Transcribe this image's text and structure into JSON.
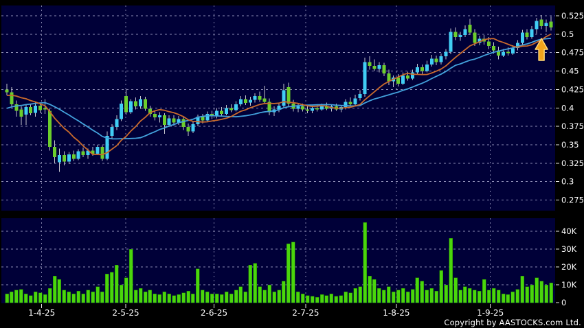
{
  "copyright": "Copyright by AASTOCKS.com Ltd.",
  "colors": {
    "background": "#000000",
    "plot_bg": "#000038",
    "grid_h": "#8C8CB4",
    "grid_v": "#8080A8",
    "up": "#41CDF4",
    "down": "#6CCE2C",
    "wick": "#C4C4CC",
    "volume_bar": "#4AD60C",
    "volume_bar_edge": "#1E7A00",
    "ma_short": "#C96A2C",
    "ma_long": "#43A2DC",
    "text": "#FFFFFF",
    "tick": "#E8E8E8",
    "arrow_fill": "#F2A41C",
    "arrow_edge": "#FFD978"
  },
  "chart_data": {
    "type": "candlestick",
    "title": "",
    "xlabel": "",
    "ylabel": "",
    "price_axis_range": [
      0.275,
      0.525
    ],
    "volume_axis_range": [
      0,
      40000
    ],
    "candles_format": [
      "open",
      "high",
      "low",
      "close",
      "volume"
    ],
    "price_axis_ticks": [
      {
        "v": 0.525,
        "label": "0.525"
      },
      {
        "v": 0.5,
        "label": "0.5"
      },
      {
        "v": 0.475,
        "label": "0.475"
      },
      {
        "v": 0.45,
        "label": "0.45"
      },
      {
        "v": 0.425,
        "label": "0.425"
      },
      {
        "v": 0.4,
        "label": "0.4"
      },
      {
        "v": 0.375,
        "label": "0.375"
      },
      {
        "v": 0.35,
        "label": "0.35"
      },
      {
        "v": 0.325,
        "label": "0.325"
      },
      {
        "v": 0.3,
        "label": "0.3"
      },
      {
        "v": 0.275,
        "label": "0.275"
      }
    ],
    "volume_axis_ticks": [
      {
        "v": 40000,
        "label": "40K"
      },
      {
        "v": 30000,
        "label": "30K"
      },
      {
        "v": 20000,
        "label": "20K"
      },
      {
        "v": 10000,
        "label": "10K"
      },
      {
        "v": 0,
        "label": "0"
      }
    ],
    "x_axis_labels": [
      {
        "label": "1-4-25",
        "index": 7.3
      },
      {
        "label": "2-5-25",
        "index": 24.9
      },
      {
        "label": "2-6-25",
        "index": 43.4
      },
      {
        "label": "2-7-25",
        "index": 62.6
      },
      {
        "label": "1-8-25",
        "index": 81.6
      },
      {
        "label": "1-9-25",
        "index": 101.3
      }
    ],
    "moving_averages": {
      "short_period": 10,
      "long_period": 20,
      "prehistory_closes": [
        0.362,
        0.366,
        0.37,
        0.374,
        0.377,
        0.38,
        0.383,
        0.386,
        0.39,
        0.394,
        0.398,
        0.403,
        0.407,
        0.411,
        0.415,
        0.418,
        0.421,
        0.423,
        0.425,
        0.426
      ]
    },
    "annotations": {
      "up_arrow_index": 112
    },
    "candles": [
      [
        0.425,
        0.433,
        0.417,
        0.421,
        5000
      ],
      [
        0.421,
        0.428,
        0.402,
        0.405,
        6000
      ],
      [
        0.405,
        0.41,
        0.388,
        0.396,
        7000
      ],
      [
        0.398,
        0.402,
        0.377,
        0.388,
        7500
      ],
      [
        0.391,
        0.404,
        0.377,
        0.401,
        5000
      ],
      [
        0.401,
        0.406,
        0.39,
        0.393,
        4000
      ],
      [
        0.393,
        0.407,
        0.388,
        0.403,
        6000
      ],
      [
        0.403,
        0.406,
        0.393,
        0.397,
        5500
      ],
      [
        0.4,
        0.412,
        0.392,
        0.398,
        4500
      ],
      [
        0.396,
        0.399,
        0.342,
        0.347,
        8000
      ],
      [
        0.347,
        0.356,
        0.325,
        0.333,
        15000
      ],
      [
        0.326,
        0.345,
        0.313,
        0.336,
        13000
      ],
      [
        0.336,
        0.341,
        0.322,
        0.327,
        7000
      ],
      [
        0.327,
        0.34,
        0.324,
        0.337,
        6000
      ],
      [
        0.337,
        0.342,
        0.328,
        0.331,
        5000
      ],
      [
        0.331,
        0.344,
        0.329,
        0.341,
        6500
      ],
      [
        0.341,
        0.346,
        0.333,
        0.336,
        5000
      ],
      [
        0.336,
        0.345,
        0.331,
        0.342,
        7000
      ],
      [
        0.342,
        0.347,
        0.335,
        0.338,
        6000
      ],
      [
        0.338,
        0.35,
        0.336,
        0.347,
        9000
      ],
      [
        0.347,
        0.349,
        0.328,
        0.331,
        6000
      ],
      [
        0.331,
        0.368,
        0.329,
        0.362,
        16000
      ],
      [
        0.362,
        0.378,
        0.358,
        0.374,
        17000
      ],
      [
        0.374,
        0.39,
        0.37,
        0.385,
        21000
      ],
      [
        0.385,
        0.41,
        0.382,
        0.406,
        10000
      ],
      [
        0.416,
        0.425,
        0.391,
        0.394,
        14000
      ],
      [
        0.394,
        0.412,
        0.392,
        0.409,
        30000
      ],
      [
        0.409,
        0.414,
        0.398,
        0.402,
        7000
      ],
      [
        0.402,
        0.416,
        0.399,
        0.412,
        8000
      ],
      [
        0.412,
        0.415,
        0.396,
        0.399,
        6000
      ],
      [
        0.399,
        0.403,
        0.388,
        0.392,
        7000
      ],
      [
        0.392,
        0.397,
        0.383,
        0.387,
        5000
      ],
      [
        0.387,
        0.394,
        0.38,
        0.39,
        4500
      ],
      [
        0.39,
        0.393,
        0.365,
        0.377,
        6000
      ],
      [
        0.377,
        0.39,
        0.374,
        0.386,
        5000
      ],
      [
        0.386,
        0.39,
        0.376,
        0.38,
        4000
      ],
      [
        0.38,
        0.389,
        0.377,
        0.385,
        4500
      ],
      [
        0.385,
        0.388,
        0.37,
        0.374,
        5500
      ],
      [
        0.374,
        0.379,
        0.362,
        0.368,
        6500
      ],
      [
        0.368,
        0.382,
        0.366,
        0.378,
        5000
      ],
      [
        0.378,
        0.391,
        0.375,
        0.388,
        19000
      ],
      [
        0.388,
        0.392,
        0.379,
        0.383,
        7000
      ],
      [
        0.383,
        0.395,
        0.381,
        0.392,
        6000
      ],
      [
        0.392,
        0.396,
        0.385,
        0.389,
        5000
      ],
      [
        0.389,
        0.4,
        0.386,
        0.396,
        5000
      ],
      [
        0.396,
        0.401,
        0.389,
        0.392,
        4500
      ],
      [
        0.392,
        0.404,
        0.39,
        0.4,
        6000
      ],
      [
        0.4,
        0.405,
        0.394,
        0.397,
        5000
      ],
      [
        0.397,
        0.409,
        0.395,
        0.405,
        7000
      ],
      [
        0.405,
        0.416,
        0.402,
        0.412,
        9000
      ],
      [
        0.412,
        0.417,
        0.404,
        0.407,
        6000
      ],
      [
        0.407,
        0.415,
        0.403,
        0.411,
        21000
      ],
      [
        0.411,
        0.42,
        0.407,
        0.416,
        22000
      ],
      [
        0.416,
        0.422,
        0.408,
        0.411,
        9000
      ],
      [
        0.413,
        0.43,
        0.406,
        0.408,
        7000
      ],
      [
        0.408,
        0.413,
        0.39,
        0.394,
        10000
      ],
      [
        0.394,
        0.402,
        0.389,
        0.398,
        6000
      ],
      [
        0.398,
        0.407,
        0.394,
        0.403,
        7000
      ],
      [
        0.403,
        0.433,
        0.4,
        0.424,
        12000
      ],
      [
        0.428,
        0.434,
        0.402,
        0.406,
        33000
      ],
      [
        0.406,
        0.411,
        0.395,
        0.399,
        34000
      ],
      [
        0.399,
        0.406,
        0.394,
        0.402,
        6000
      ],
      [
        0.402,
        0.406,
        0.395,
        0.398,
        5000
      ],
      [
        0.398,
        0.404,
        0.393,
        0.396,
        4000
      ],
      [
        0.396,
        0.403,
        0.393,
        0.4,
        3500
      ],
      [
        0.4,
        0.404,
        0.395,
        0.398,
        3000
      ],
      [
        0.398,
        0.406,
        0.396,
        0.403,
        4500
      ],
      [
        0.403,
        0.407,
        0.397,
        0.399,
        4000
      ],
      [
        0.399,
        0.405,
        0.395,
        0.402,
        5000
      ],
      [
        0.402,
        0.406,
        0.396,
        0.398,
        3500
      ],
      [
        0.398,
        0.404,
        0.394,
        0.401,
        4000
      ],
      [
        0.401,
        0.412,
        0.398,
        0.408,
        6000
      ],
      [
        0.408,
        0.414,
        0.402,
        0.405,
        5500
      ],
      [
        0.405,
        0.418,
        0.403,
        0.413,
        8000
      ],
      [
        0.413,
        0.424,
        0.41,
        0.419,
        9000
      ],
      [
        0.419,
        0.468,
        0.415,
        0.462,
        45000
      ],
      [
        0.462,
        0.47,
        0.452,
        0.457,
        15000
      ],
      [
        0.457,
        0.466,
        0.45,
        0.453,
        13000
      ],
      [
        0.453,
        0.462,
        0.448,
        0.458,
        8000
      ],
      [
        0.458,
        0.461,
        0.443,
        0.447,
        7000
      ],
      [
        0.447,
        0.452,
        0.431,
        0.436,
        9000
      ],
      [
        0.436,
        0.444,
        0.428,
        0.441,
        6000
      ],
      [
        0.441,
        0.446,
        0.429,
        0.433,
        7000
      ],
      [
        0.433,
        0.448,
        0.431,
        0.444,
        8000
      ],
      [
        0.444,
        0.449,
        0.437,
        0.44,
        6000
      ],
      [
        0.44,
        0.452,
        0.438,
        0.448,
        7500
      ],
      [
        0.448,
        0.46,
        0.445,
        0.455,
        14000
      ],
      [
        0.455,
        0.459,
        0.446,
        0.45,
        12000
      ],
      [
        0.45,
        0.464,
        0.448,
        0.459,
        7000
      ],
      [
        0.459,
        0.472,
        0.456,
        0.467,
        8000
      ],
      [
        0.467,
        0.471,
        0.458,
        0.462,
        6500
      ],
      [
        0.462,
        0.474,
        0.459,
        0.47,
        18000
      ],
      [
        0.47,
        0.48,
        0.466,
        0.476,
        10000
      ],
      [
        0.476,
        0.508,
        0.473,
        0.503,
        36000
      ],
      [
        0.503,
        0.509,
        0.492,
        0.496,
        14000
      ],
      [
        0.496,
        0.503,
        0.491,
        0.499,
        7000
      ],
      [
        0.499,
        0.512,
        0.496,
        0.507,
        9000
      ],
      [
        0.513,
        0.521,
        0.499,
        0.502,
        8000
      ],
      [
        0.502,
        0.507,
        0.484,
        0.488,
        7000
      ],
      [
        0.488,
        0.498,
        0.485,
        0.494,
        6500
      ],
      [
        0.494,
        0.499,
        0.486,
        0.49,
        13000
      ],
      [
        0.49,
        0.496,
        0.48,
        0.484,
        7000
      ],
      [
        0.484,
        0.489,
        0.474,
        0.478,
        8000
      ],
      [
        0.478,
        0.483,
        0.466,
        0.471,
        7000
      ],
      [
        0.471,
        0.48,
        0.469,
        0.476,
        5000
      ],
      [
        0.476,
        0.482,
        0.471,
        0.474,
        4500
      ],
      [
        0.474,
        0.485,
        0.472,
        0.481,
        6000
      ],
      [
        0.481,
        0.492,
        0.478,
        0.488,
        7500
      ],
      [
        0.488,
        0.506,
        0.486,
        0.502,
        15000
      ],
      [
        0.502,
        0.507,
        0.493,
        0.496,
        9000
      ],
      [
        0.496,
        0.511,
        0.494,
        0.507,
        10000
      ],
      [
        0.507,
        0.522,
        0.501,
        0.518,
        14000
      ],
      [
        0.52,
        0.526,
        0.507,
        0.511,
        12000
      ],
      [
        0.511,
        0.52,
        0.503,
        0.515,
        10000
      ],
      [
        0.517,
        0.524,
        0.505,
        0.509,
        11000
      ]
    ]
  }
}
